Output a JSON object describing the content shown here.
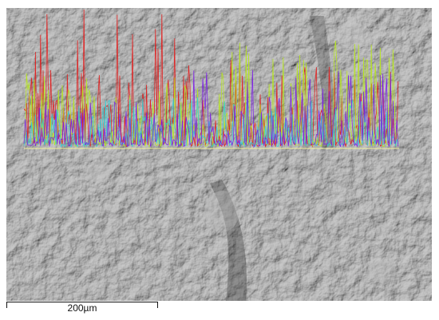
{
  "scale_bar": {
    "label": "200µm"
  },
  "linescan": {
    "series": [
      {
        "color": "#e01e1e",
        "level": 0.55
      },
      {
        "color": "#b6e61e",
        "level": 0.42
      },
      {
        "color": "#2fd0d6",
        "level": 0.22
      },
      {
        "color": "#7a1ee6",
        "level": 0.3
      }
    ]
  }
}
